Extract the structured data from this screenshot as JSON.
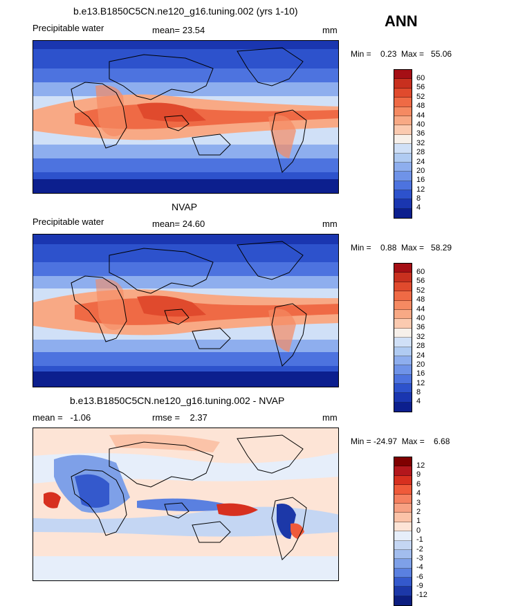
{
  "header": {
    "season": "ANN"
  },
  "panels": [
    {
      "title": "b.e13.B1850C5CN.ne120_g16.tuning.002 (yrs 1-10)",
      "left_text": "Precipitable water",
      "mid_text": "mean=  23.54",
      "unit": "mm",
      "minmax": "Min =    0.23  Max =   55.06",
      "colorbar_ticks": [
        "60",
        "56",
        "52",
        "48",
        "44",
        "40",
        "36",
        "32",
        "28",
        "24",
        "20",
        "16",
        "12",
        "8",
        "4"
      ],
      "colors": [
        "#a50f15",
        "#c8301f",
        "#e04a2d",
        "#ef6a45",
        "#f58a62",
        "#f8a985",
        "#fbcab0",
        "#f7f0ea",
        "#d0e0f7",
        "#b0cbf2",
        "#8eaeee",
        "#6f93e8",
        "#4d73df",
        "#2d52cc",
        "#1a36b0",
        "#0c1f8e"
      ]
    },
    {
      "title": "NVAP",
      "left_text": "Precipitable water",
      "mid_text": "mean=  24.60",
      "unit": "mm",
      "minmax": "Min =    0.88  Max =   58.29",
      "colorbar_ticks": [
        "60",
        "56",
        "52",
        "48",
        "44",
        "40",
        "36",
        "32",
        "28",
        "24",
        "20",
        "16",
        "12",
        "8",
        "4"
      ],
      "colors": [
        "#a50f15",
        "#c8301f",
        "#e04a2d",
        "#ef6a45",
        "#f58a62",
        "#f8a985",
        "#fbcab0",
        "#f7f0ea",
        "#d0e0f7",
        "#b0cbf2",
        "#8eaeee",
        "#6f93e8",
        "#4d73df",
        "#2d52cc",
        "#1a36b0",
        "#0c1f8e"
      ]
    },
    {
      "title": "b.e13.B1850C5CN.ne120_g16.tuning.002 - NVAP",
      "left_text": "mean =   -1.06",
      "mid_text": "rmse =    2.37",
      "unit": "mm",
      "minmax": "Min = -24.97  Max =    6.68",
      "colorbar_ticks": [
        "12",
        "9",
        "6",
        "4",
        "3",
        "2",
        "1",
        "0",
        "-1",
        "-2",
        "-3",
        "-4",
        "-6",
        "-9",
        "-12"
      ],
      "colors": [
        "#7f0000",
        "#b3171c",
        "#d7301f",
        "#ef5a3a",
        "#f58060",
        "#f7a183",
        "#fbc3a8",
        "#fde4d6",
        "#e6eefa",
        "#c4d6f3",
        "#a2bdee",
        "#7ea0e8",
        "#5a80e0",
        "#3459cc",
        "#1c38a8",
        "#0c1e80"
      ]
    }
  ]
}
